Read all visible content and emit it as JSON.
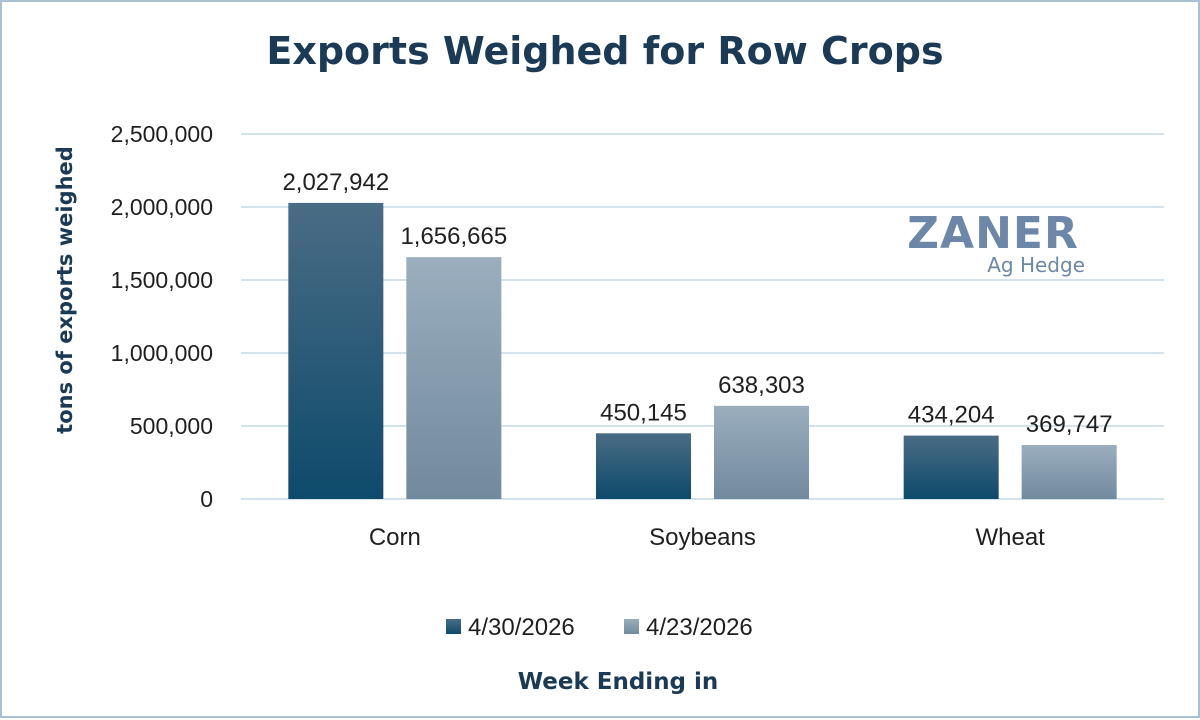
{
  "chart_data": {
    "type": "bar",
    "title": "Exports Weighed for Row Crops",
    "ylabel": "tons of exports weighed",
    "xlabel": "Week Ending in",
    "categories": [
      "Corn",
      "Soybeans",
      "Wheat"
    ],
    "series": [
      {
        "name": "4/30/2026",
        "values": [
          2027942,
          450145,
          434204
        ],
        "value_labels": [
          "2,027,942",
          "450,145",
          "434,204"
        ]
      },
      {
        "name": "4/23/2026",
        "values": [
          1656665,
          638303,
          369747
        ],
        "value_labels": [
          "1,656,665",
          "638,303",
          "369,747"
        ]
      }
    ],
    "ylim": [
      0,
      2500000
    ],
    "yticks": [
      0,
      500000,
      1000000,
      1500000,
      2000000,
      2500000
    ],
    "ytick_labels": [
      "0",
      "500,000",
      "1,000,000",
      "1,500,000",
      "2,000,000",
      "2,500,000"
    ],
    "grid": true,
    "legend_position": "bottom",
    "colors": {
      "series_1_top": "#4a6c85",
      "series_1_bottom": "#0d4a6b",
      "series_2_top": "#9aaebe",
      "series_2_bottom": "#718a9e",
      "grid": "#c5d9e6",
      "title": "#1b3a55"
    }
  },
  "logo": {
    "main": "ZANER",
    "sub": "Ag Hedge"
  }
}
